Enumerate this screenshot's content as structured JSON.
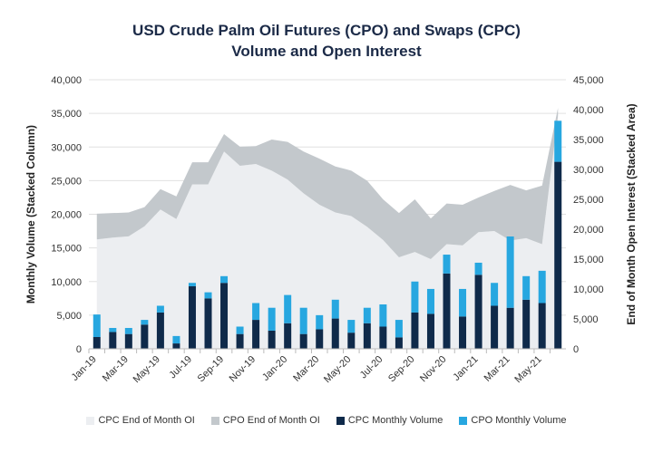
{
  "chart_data": {
    "type": "bar",
    "title": "USD Crude Palm Oil Futures (CPO) and Swaps (CPC)",
    "subtitle": "Volume and Open Interest",
    "ylabel": "Monthly Volume (Stacked Column)",
    "y2label": "End of Month Open Interest (Stacked Area)",
    "ylim": [
      0,
      40000
    ],
    "y2lim": [
      0,
      45000
    ],
    "yticks": [
      "0",
      "5,000",
      "10,000",
      "15,000",
      "20,000",
      "25,000",
      "30,000",
      "35,000",
      "40,000"
    ],
    "y2ticks": [
      "0",
      "5,000",
      "10,000",
      "15,000",
      "20,000",
      "25,000",
      "30,000",
      "35,000",
      "40,000",
      "45,000"
    ],
    "grid": true,
    "legend_position": "bottom",
    "categories": [
      "Jan-19",
      "Feb-19",
      "Mar-19",
      "Apr-19",
      "May-19",
      "Jun-19",
      "Jul-19",
      "Aug-19",
      "Sep-19",
      "Oct-19",
      "Nov-19",
      "Dec-19",
      "Jan-20",
      "Feb-20",
      "Mar-20",
      "Apr-20",
      "May-20",
      "Jun-20",
      "Jul-20",
      "Aug-20",
      "Sep-20",
      "Oct-20",
      "Nov-20",
      "Dec-20",
      "Jan-21",
      "Feb-21",
      "Mar-21",
      "Apr-21",
      "May-21",
      "Jun-21"
    ],
    "xtick_labels": [
      "Jan-19",
      "Mar-19",
      "May-19",
      "Jul-19",
      "Sep-19",
      "Nov-19",
      "Jan-20",
      "Mar-20",
      "May-20",
      "Jul-20",
      "Sep-20",
      "Nov-20",
      "Jan-21",
      "Mar-21",
      "May-21"
    ],
    "series": [
      {
        "name": "CPC End of Month OI",
        "type": "area",
        "axis": "right",
        "color": "#eceef1",
        "values": [
          18300,
          18600,
          18800,
          20500,
          23300,
          21700,
          27500,
          27500,
          33000,
          30600,
          30900,
          29800,
          28300,
          26000,
          24100,
          22800,
          22200,
          20400,
          18200,
          15300,
          16200,
          15000,
          17500,
          17300,
          19500,
          19700,
          18100,
          18500,
          17500,
          39000
        ]
      },
      {
        "name": "CPO End of Month OI",
        "type": "area",
        "axis": "right",
        "color": "#c3c8cc",
        "values": [
          4300,
          4100,
          4000,
          3200,
          3400,
          3800,
          3700,
          3700,
          2900,
          3200,
          3000,
          5200,
          6300,
          7000,
          7700,
          7700,
          7600,
          7700,
          6800,
          7400,
          8800,
          6800,
          6800,
          6800,
          5800,
          6700,
          9300,
          8000,
          9800,
          1300
        ]
      },
      {
        "name": "CPC Monthly Volume",
        "type": "bar",
        "axis": "left",
        "color": "#0f2a4a",
        "values": [
          1750,
          2500,
          2200,
          3600,
          5400,
          800,
          9300,
          7500,
          9800,
          2200,
          4300,
          2700,
          3800,
          2200,
          2900,
          4500,
          2400,
          3800,
          3300,
          1700,
          5400,
          5200,
          11200,
          4800,
          11000,
          6400,
          6100,
          7300,
          6800,
          27800
        ]
      },
      {
        "name": "CPO Monthly Volume",
        "type": "bar",
        "axis": "left",
        "color": "#27a7e0",
        "values": [
          3350,
          600,
          900,
          700,
          1000,
          1100,
          500,
          900,
          1000,
          1100,
          2500,
          3400,
          4200,
          3900,
          2100,
          2800,
          1900,
          2300,
          3300,
          2600,
          4600,
          3700,
          2800,
          4100,
          1800,
          3400,
          10600,
          3500,
          4800,
          6100
        ]
      }
    ]
  }
}
